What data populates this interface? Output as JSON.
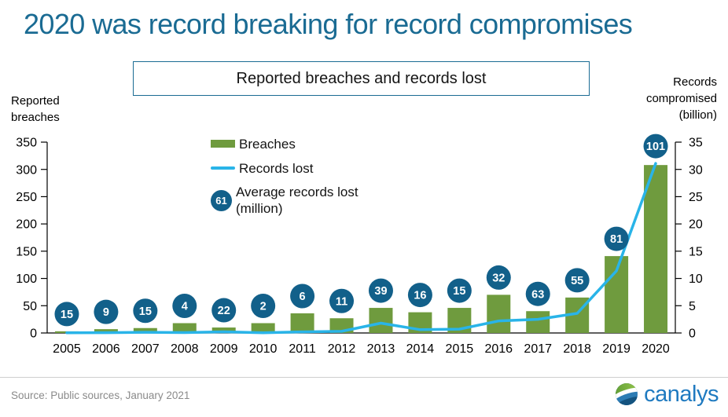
{
  "page": {
    "title": "2020 was record breaking for record compromises",
    "subtitle": "Reported breaches and records lost"
  },
  "legend": {
    "breaches_label": "Breaches",
    "records_lost_label": "Records lost",
    "avg_sample_value": "61",
    "avg_label": "Average records lost\n(million)"
  },
  "footer": {
    "source": "Source: Public sources, January 2021",
    "brand": "canalys"
  },
  "colors": {
    "title_teal": "#1a6b93",
    "bar_green": "#6f9b3e",
    "line_blue": "#29b4e8",
    "bubble_blue": "#12608a",
    "axis_black": "#000000",
    "source_gray": "#8a8a8a",
    "brand_blue": "#1f7ac0",
    "logo_green": "#7ab53e"
  },
  "chart_data": {
    "type": "bar+line",
    "title": "Reported breaches and records lost",
    "grid": false,
    "legend_position": "inside-top-left",
    "categories": [
      "2005",
      "2006",
      "2007",
      "2008",
      "2009",
      "2010",
      "2011",
      "2012",
      "2013",
      "2014",
      "2015",
      "2016",
      "2017",
      "2018",
      "2019",
      "2020"
    ],
    "series": [
      {
        "name": "Breaches",
        "type": "bar",
        "axis": "left",
        "color": "#6f9b3e",
        "values": [
          3,
          7,
          9,
          18,
          10,
          18,
          36,
          27,
          46,
          38,
          46,
          70,
          40,
          65,
          141,
          308
        ]
      },
      {
        "name": "Records lost",
        "type": "line",
        "axis": "right",
        "color": "#29b4e8",
        "values": [
          0.05,
          0.06,
          0.13,
          0.07,
          0.22,
          0.04,
          0.2,
          0.3,
          1.8,
          0.6,
          0.7,
          2.2,
          2.5,
          3.6,
          11.4,
          31.1
        ]
      },
      {
        "name": "Average records lost (million)",
        "type": "point-labels",
        "color": "#12608a",
        "values": [
          15,
          9,
          15,
          4,
          22,
          2,
          6,
          11,
          39,
          16,
          15,
          32,
          63,
          55,
          81,
          101
        ]
      }
    ],
    "left_axis": {
      "title": "Reported breaches",
      "title_multiline": "Reported\nbreaches",
      "min": 0,
      "max": 350,
      "ticks": [
        0,
        50,
        100,
        150,
        200,
        250,
        300,
        350
      ]
    },
    "right_axis": {
      "title": "Records compromised (billion)",
      "title_multiline": "Records\ncompromised\n(billion)",
      "min": 0,
      "max": 35,
      "ticks": [
        0,
        5,
        10,
        15,
        20,
        25,
        30,
        35
      ]
    }
  }
}
